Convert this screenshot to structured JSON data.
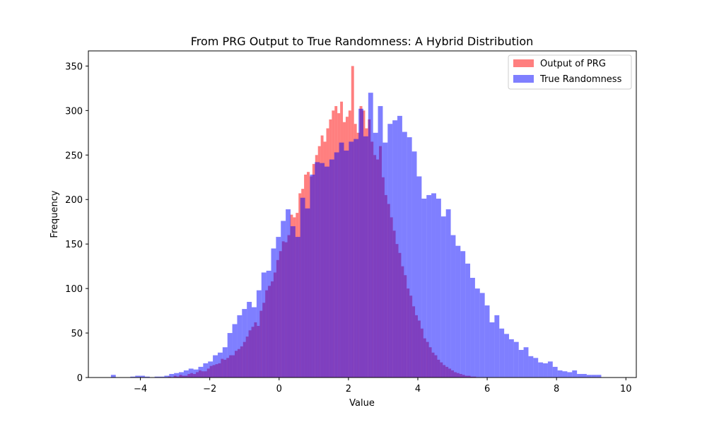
{
  "chart_data": {
    "type": "histogram",
    "title": "From PRG Output to True Randomness: A Hybrid Distribution",
    "xlabel": "Value",
    "ylabel": "Frequency",
    "xlim": [
      -5.5,
      10.3
    ],
    "ylim": [
      0,
      367
    ],
    "xticks": [
      -4,
      -2,
      0,
      2,
      4,
      6,
      8,
      10
    ],
    "xtick_labels": [
      "−4",
      "−2",
      "0",
      "2",
      "4",
      "6",
      "8",
      "10"
    ],
    "yticks": [
      0,
      50,
      100,
      150,
      200,
      250,
      300,
      350
    ],
    "ytick_labels": [
      "0",
      "50",
      "100",
      "150",
      "200",
      "250",
      "300",
      "350"
    ],
    "grid": false,
    "legend_position": "upper right",
    "series": [
      {
        "name": "Output of PRG",
        "color": "#ff0000",
        "alpha": 0.5,
        "bin_start": -3.2,
        "bin_width": 0.08,
        "counts": [
          1,
          0,
          2,
          1,
          3,
          2,
          2,
          4,
          5,
          4,
          6,
          8,
          7,
          7,
          10,
          13,
          14,
          15,
          16,
          21,
          20,
          22,
          25,
          25,
          30,
          32,
          35,
          40,
          46,
          53,
          57,
          62,
          58,
          75,
          84,
          98,
          103,
          108,
          118,
          132,
          142,
          153,
          152,
          160,
          183,
          180,
          185,
          207,
          212,
          228,
          231,
          226,
          240,
          250,
          260,
          272,
          265,
          280,
          290,
          300,
          305,
          297,
          310,
          287,
          293,
          300,
          350,
          285,
          275,
          305,
          300,
          280,
          290,
          265,
          250,
          245,
          260,
          225,
          205,
          195,
          180,
          165,
          150,
          140,
          125,
          115,
          100,
          92,
          80,
          70,
          64,
          55,
          44,
          40,
          34,
          28,
          25,
          20,
          17,
          14,
          12,
          10,
          8,
          6,
          5,
          4,
          3,
          2,
          2,
          1,
          1
        ]
      },
      {
        "name": "True Randomness",
        "color": "#0000ff",
        "alpha": 0.5,
        "bin_start": -4.85,
        "bin_width": 0.14,
        "counts": [
          3,
          0,
          0,
          0,
          1,
          2,
          2,
          1,
          0,
          1,
          1,
          2,
          4,
          5,
          6,
          8,
          10,
          9,
          12,
          16,
          18,
          25,
          28,
          34,
          50,
          60,
          70,
          77,
          85,
          79,
          98,
          118,
          120,
          145,
          158,
          176,
          189,
          170,
          158,
          202,
          190,
          228,
          242,
          241,
          237,
          245,
          253,
          264,
          255,
          265,
          268,
          302,
          271,
          320,
          275,
          305,
          264,
          285,
          289,
          294,
          276,
          270,
          254,
          226,
          201,
          205,
          207,
          201,
          181,
          189,
          160,
          148,
          142,
          128,
          112,
          100,
          95,
          81,
          62,
          70,
          55,
          49,
          43,
          40,
          31,
          34,
          24,
          22,
          17,
          16,
          18,
          12,
          8,
          7,
          6,
          8,
          4,
          4,
          3,
          3,
          3
        ]
      }
    ]
  }
}
